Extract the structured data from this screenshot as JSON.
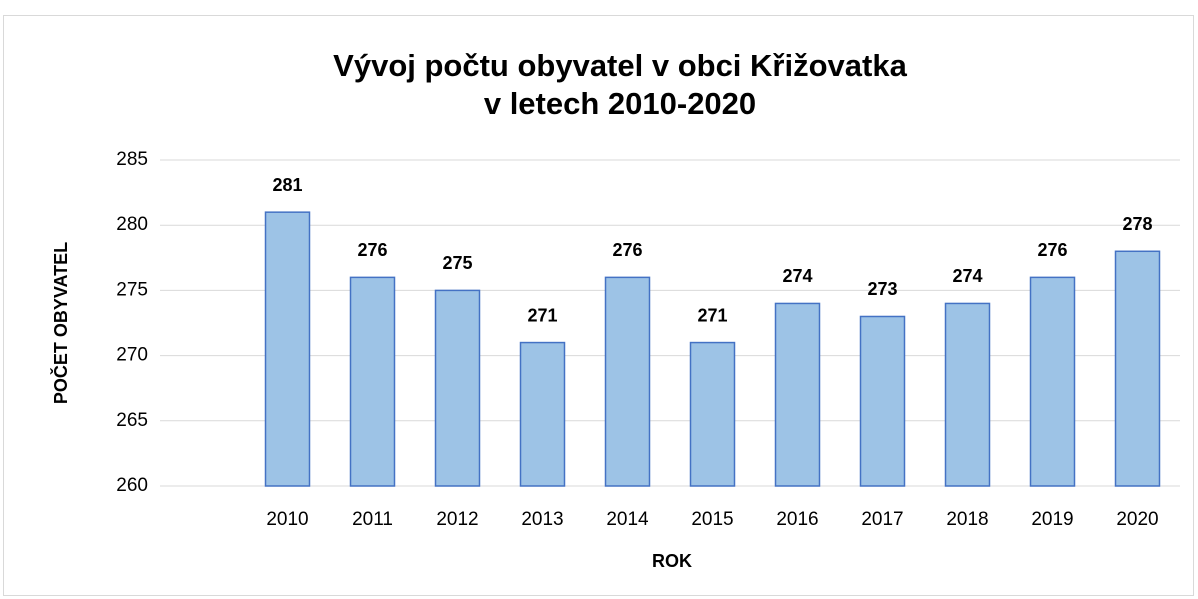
{
  "chart_data": {
    "type": "bar",
    "title": [
      "Vývoj počtu obyvatel v obci Křižovatka",
      "v letech 2010-2020"
    ],
    "x_label": "ROK",
    "y_label": "POČET OBYVATEL",
    "categories": [
      null,
      "2010",
      "2011",
      "2012",
      "2013",
      "2014",
      "2015",
      "2016",
      "2017",
      "2018",
      "2019",
      "2020"
    ],
    "values": [
      null,
      281,
      276,
      275,
      271,
      276,
      271,
      274,
      273,
      274,
      276,
      278
    ],
    "color": "#9dc3e6",
    "edge_color": "#4472c4",
    "ylim": [
      260,
      285
    ],
    "yticks": [
      260,
      265,
      270,
      275,
      280,
      285
    ],
    "grid": true
  }
}
